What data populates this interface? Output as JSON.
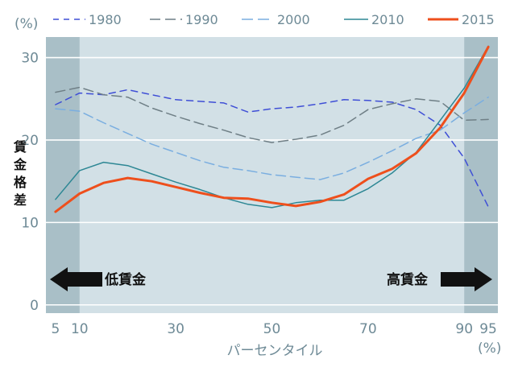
{
  "chart_data": {
    "type": "line",
    "title": "",
    "xlabel": "パーセンタイル",
    "x_unit": "(%)",
    "ylabel": "賃金格差",
    "y_unit": "(%)",
    "xlim": [
      3,
      97
    ],
    "ylim": [
      -1,
      32.5
    ],
    "x_ticks": [
      5,
      10,
      30,
      50,
      70,
      90,
      95
    ],
    "y_ticks": [
      0,
      10,
      20,
      30
    ],
    "grid": true,
    "legend_position": "top",
    "shaded_regions": [
      {
        "x_from": 3,
        "x_to": 10
      },
      {
        "x_from": 90,
        "x_to": 97
      }
    ],
    "annotations": {
      "low_wage": "低賃金",
      "high_wage": "高賃金"
    },
    "colors": {
      "plot_bg": "#d2e0e6",
      "shade": "#a9bfc7",
      "grid": "#ffffff",
      "s1980": "#3f4fd6",
      "s1990": "#6f7f86",
      "s2000": "#7aaee0",
      "s2010": "#2d8794",
      "s2015": "#ee4f1c",
      "arrow": "#111111"
    },
    "series": [
      {
        "name": "1980",
        "dash": "8,6",
        "width": 1.5,
        "x": [
          5,
          10,
          15,
          20,
          25,
          30,
          35,
          40,
          45,
          50,
          55,
          60,
          65,
          70,
          75,
          80,
          85,
          90,
          95
        ],
        "y": [
          24.3,
          25.7,
          25.5,
          26.1,
          25.5,
          24.9,
          24.7,
          24.5,
          23.4,
          23.8,
          24.0,
          24.4,
          24.9,
          24.8,
          24.6,
          23.7,
          21.8,
          17.8,
          11.9
        ]
      },
      {
        "name": "1990",
        "dash": "12,6",
        "width": 1.5,
        "x": [
          5,
          10,
          15,
          20,
          25,
          30,
          35,
          40,
          45,
          50,
          55,
          60,
          65,
          70,
          75,
          80,
          85,
          90,
          95
        ],
        "y": [
          25.8,
          26.4,
          25.5,
          25.2,
          23.9,
          22.9,
          22.0,
          21.2,
          20.3,
          19.7,
          20.1,
          20.6,
          21.8,
          23.7,
          24.4,
          25.0,
          24.7,
          22.4,
          22.5
        ]
      },
      {
        "name": "2000",
        "dash": "12,6",
        "width": 1.5,
        "x": [
          5,
          10,
          15,
          20,
          25,
          30,
          35,
          40,
          45,
          50,
          55,
          60,
          65,
          70,
          75,
          80,
          85,
          90,
          95
        ],
        "y": [
          23.8,
          23.5,
          22.1,
          20.8,
          19.5,
          18.5,
          17.5,
          16.7,
          16.3,
          15.8,
          15.5,
          15.2,
          16.0,
          17.3,
          18.7,
          20.2,
          21.2,
          23.3,
          25.2
        ]
      },
      {
        "name": "2010",
        "dash": "",
        "width": 1.5,
        "x": [
          5,
          10,
          15,
          20,
          25,
          30,
          35,
          40,
          45,
          50,
          55,
          60,
          65,
          70,
          75,
          80,
          85,
          90,
          95
        ],
        "y": [
          12.8,
          16.3,
          17.3,
          16.9,
          15.9,
          14.9,
          14.0,
          13.0,
          12.2,
          11.8,
          12.4,
          12.7,
          12.7,
          14.1,
          16.0,
          18.5,
          22.4,
          26.3,
          31.4
        ]
      },
      {
        "name": "2015",
        "dash": "",
        "width": 3,
        "x": [
          5,
          10,
          15,
          20,
          25,
          30,
          35,
          40,
          45,
          50,
          55,
          60,
          65,
          70,
          75,
          80,
          85,
          90,
          95
        ],
        "y": [
          11.3,
          13.5,
          14.8,
          15.4,
          15.0,
          14.3,
          13.6,
          13.0,
          12.9,
          12.4,
          12.0,
          12.5,
          13.4,
          15.3,
          16.5,
          18.4,
          21.5,
          25.7,
          31.3
        ]
      }
    ]
  }
}
